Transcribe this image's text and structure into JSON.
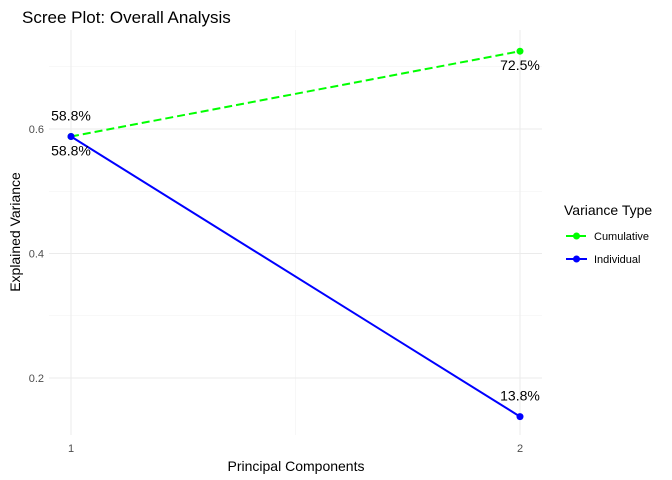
{
  "chart_data": {
    "type": "line",
    "title": "Scree Plot: Overall Analysis",
    "xlabel": "Principal Components",
    "ylabel": "Explained Variance",
    "x": [
      1,
      2
    ],
    "x_ticks": [
      "1",
      "2"
    ],
    "y_ticks": [
      "0.2",
      "0.4",
      "0.6"
    ],
    "ylim": [
      0.12,
      0.75
    ],
    "grid": true,
    "legend": {
      "title": "Variance Type",
      "placement": "right"
    },
    "series": [
      {
        "name": "Cumulative",
        "values": [
          0.588,
          0.725
        ],
        "labels": [
          "58.8%",
          "72.5%"
        ],
        "color": "#00FF00",
        "dash": true
      },
      {
        "name": "Individual",
        "values": [
          0.588,
          0.138
        ],
        "labels": [
          "58.8%",
          "13.8%"
        ],
        "color": "#0000FF",
        "dash": false
      }
    ]
  }
}
